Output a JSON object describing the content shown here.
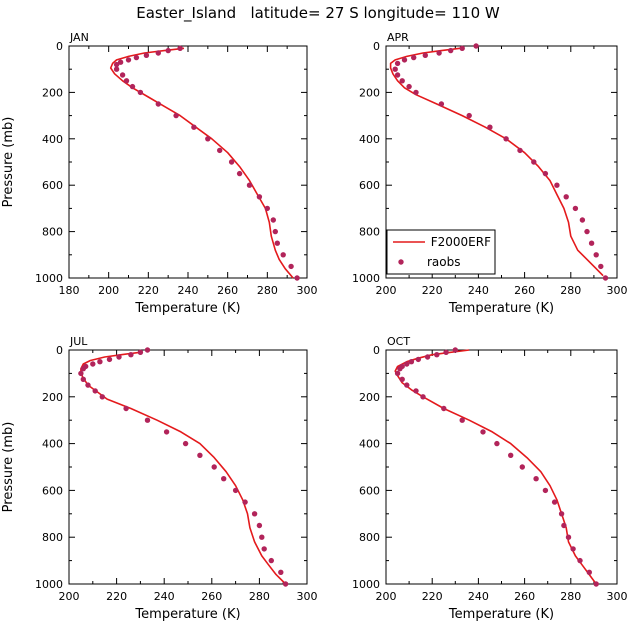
{
  "title": "Easter_Island   latitude= 27 S longitude= 110 W",
  "colors": {
    "model": "#e41a1c",
    "obs": "#b2245a",
    "axis": "#000000"
  },
  "chart_data": [
    {
      "type": "line",
      "panel": "JAN",
      "xlabel": "Temperature (K)",
      "ylabel": "Pressure (mb)",
      "xlim": [
        180,
        300
      ],
      "xticks": [
        180,
        200,
        220,
        240,
        260,
        280,
        300
      ],
      "ylim": [
        0,
        1000
      ],
      "yticks": [
        0,
        200,
        400,
        600,
        800,
        1000
      ],
      "series": [
        {
          "name": "F2000ERF",
          "style": "line",
          "points": [
            [
              238,
              10
            ],
            [
              228,
              20
            ],
            [
              218,
              30
            ],
            [
              210,
              45
            ],
            [
              204,
              60
            ],
            [
              202,
              75
            ],
            [
              201,
              95
            ],
            [
              203,
              120
            ],
            [
              207,
              150
            ],
            [
              212,
              180
            ],
            [
              220,
              220
            ],
            [
              228,
              260
            ],
            [
              236,
              300
            ],
            [
              244,
              350
            ],
            [
              252,
              400
            ],
            [
              260,
              460
            ],
            [
              266,
              520
            ],
            [
              271,
              580
            ],
            [
              275,
              640
            ],
            [
              279,
              700
            ],
            [
              281,
              760
            ],
            [
              282,
              820
            ],
            [
              284,
              880
            ],
            [
              286,
              920
            ],
            [
              289,
              960
            ],
            [
              293,
              1000
            ]
          ]
        },
        {
          "name": "raobs",
          "style": "marker",
          "points": [
            [
              236,
              10
            ],
            [
              230,
              20
            ],
            [
              225,
              30
            ],
            [
              219,
              40
            ],
            [
              214,
              50
            ],
            [
              210,
              60
            ],
            [
              206,
              70
            ],
            [
              204,
              80
            ],
            [
              204,
              100
            ],
            [
              207,
              125
            ],
            [
              209,
              150
            ],
            [
              212,
              175
            ],
            [
              216,
              200
            ],
            [
              225,
              250
            ],
            [
              234,
              300
            ],
            [
              243,
              350
            ],
            [
              250,
              400
            ],
            [
              256,
              450
            ],
            [
              262,
              500
            ],
            [
              266,
              550
            ],
            [
              271,
              600
            ],
            [
              276,
              650
            ],
            [
              280,
              700
            ],
            [
              283,
              750
            ],
            [
              284,
              800
            ],
            [
              285,
              850
            ],
            [
              288,
              900
            ],
            [
              292,
              950
            ],
            [
              295,
              1000
            ]
          ]
        }
      ]
    },
    {
      "type": "line",
      "panel": "APR",
      "xlabel": "Temperature (K)",
      "ylabel": "",
      "xlim": [
        200,
        300
      ],
      "xticks": [
        200,
        220,
        240,
        260,
        280,
        300
      ],
      "ylim": [
        0,
        1000
      ],
      "yticks": [
        0,
        200,
        400,
        600,
        800,
        1000
      ],
      "legend": {
        "position": "bottom-left",
        "entries": [
          "F2000ERF",
          "raobs"
        ]
      },
      "series": [
        {
          "name": "F2000ERF",
          "style": "line",
          "points": [
            [
              232,
              10
            ],
            [
              224,
              20
            ],
            [
              216,
              30
            ],
            [
              209,
              45
            ],
            [
              204,
              60
            ],
            [
              202,
              75
            ],
            [
              202,
              95
            ],
            [
              203,
              120
            ],
            [
              205,
              150
            ],
            [
              208,
              180
            ],
            [
              213,
              210
            ],
            [
              222,
              250
            ],
            [
              233,
              300
            ],
            [
              243,
              350
            ],
            [
              252,
              400
            ],
            [
              260,
              460
            ],
            [
              266,
              520
            ],
            [
              271,
              580
            ],
            [
              274,
              640
            ],
            [
              277,
              700
            ],
            [
              279,
              760
            ],
            [
              280,
              820
            ],
            [
              283,
              880
            ],
            [
              287,
              920
            ],
            [
              291,
              960
            ],
            [
              294,
              990
            ]
          ]
        },
        {
          "name": "raobs",
          "style": "marker",
          "points": [
            [
              239,
              0
            ],
            [
              233,
              10
            ],
            [
              228,
              20
            ],
            [
              223,
              30
            ],
            [
              217,
              40
            ],
            [
              212,
              50
            ],
            [
              208,
              60
            ],
            [
              205,
              75
            ],
            [
              204,
              100
            ],
            [
              205,
              125
            ],
            [
              207,
              150
            ],
            [
              210,
              175
            ],
            [
              213,
              200
            ],
            [
              224,
              250
            ],
            [
              236,
              300
            ],
            [
              245,
              350
            ],
            [
              252,
              400
            ],
            [
              258,
              450
            ],
            [
              264,
              500
            ],
            [
              269,
              550
            ],
            [
              274,
              600
            ],
            [
              278,
              650
            ],
            [
              282,
              700
            ],
            [
              285,
              750
            ],
            [
              287,
              800
            ],
            [
              289,
              850
            ],
            [
              291,
              900
            ],
            [
              293,
              950
            ],
            [
              295,
              1000
            ]
          ]
        }
      ]
    },
    {
      "type": "line",
      "panel": "JUL",
      "xlabel": "Temperature (K)",
      "ylabel": "Pressure (mb)",
      "xlim": [
        200,
        300
      ],
      "xticks": [
        200,
        220,
        240,
        260,
        280,
        300
      ],
      "ylim": [
        0,
        1000
      ],
      "yticks": [
        0,
        200,
        400,
        600,
        800,
        1000
      ],
      "series": [
        {
          "name": "F2000ERF",
          "style": "line",
          "points": [
            [
              230,
              10
            ],
            [
              222,
              20
            ],
            [
              215,
              30
            ],
            [
              209,
              45
            ],
            [
              206,
              60
            ],
            [
              205,
              80
            ],
            [
              205,
              100
            ],
            [
              206,
              120
            ],
            [
              208,
              150
            ],
            [
              212,
              180
            ],
            [
              216,
              210
            ],
            [
              226,
              250
            ],
            [
              237,
              300
            ],
            [
              247,
              350
            ],
            [
              255,
              400
            ],
            [
              261,
              460
            ],
            [
              266,
              520
            ],
            [
              270,
              580
            ],
            [
              273,
              640
            ],
            [
              275,
              700
            ],
            [
              276,
              760
            ],
            [
              278,
              820
            ],
            [
              281,
              880
            ],
            [
              284,
              920
            ],
            [
              287,
              960
            ],
            [
              291,
              1000
            ]
          ]
        },
        {
          "name": "raobs",
          "style": "marker",
          "points": [
            [
              233,
              0
            ],
            [
              230,
              10
            ],
            [
              226,
              20
            ],
            [
              221,
              30
            ],
            [
              217,
              40
            ],
            [
              213,
              50
            ],
            [
              210,
              60
            ],
            [
              207,
              70
            ],
            [
              206,
              80
            ],
            [
              205,
              100
            ],
            [
              206,
              125
            ],
            [
              208,
              150
            ],
            [
              211,
              175
            ],
            [
              214,
              200
            ],
            [
              224,
              250
            ],
            [
              233,
              300
            ],
            [
              241,
              350
            ],
            [
              249,
              400
            ],
            [
              255,
              450
            ],
            [
              261,
              500
            ],
            [
              265,
              550
            ],
            [
              270,
              600
            ],
            [
              274,
              650
            ],
            [
              278,
              700
            ],
            [
              280,
              750
            ],
            [
              281,
              800
            ],
            [
              282,
              850
            ],
            [
              285,
              900
            ],
            [
              289,
              950
            ],
            [
              291,
              1000
            ]
          ]
        }
      ]
    },
    {
      "type": "line",
      "panel": "OCT",
      "xlabel": "Temperature (K)",
      "ylabel": "",
      "xlim": [
        200,
        300
      ],
      "xticks": [
        200,
        220,
        240,
        260,
        280,
        300
      ],
      "ylim": [
        0,
        1000
      ],
      "yticks": [
        0,
        200,
        400,
        600,
        800,
        1000
      ],
      "series": [
        {
          "name": "F2000ERF",
          "style": "line",
          "points": [
            [
              236,
              0
            ],
            [
              228,
              10
            ],
            [
              220,
              20
            ],
            [
              214,
              35
            ],
            [
              209,
              50
            ],
            [
              205,
              70
            ],
            [
              204,
              90
            ],
            [
              205,
              110
            ],
            [
              207,
              140
            ],
            [
              211,
              170
            ],
            [
              216,
              200
            ],
            [
              225,
              250
            ],
            [
              236,
              300
            ],
            [
              246,
              350
            ],
            [
              254,
              400
            ],
            [
              261,
              460
            ],
            [
              267,
              520
            ],
            [
              271,
              580
            ],
            [
              274,
              640
            ],
            [
              276,
              700
            ],
            [
              278,
              760
            ],
            [
              279,
              820
            ],
            [
              282,
              880
            ],
            [
              285,
              920
            ],
            [
              288,
              960
            ],
            [
              291,
              1000
            ]
          ]
        },
        {
          "name": "raobs",
          "style": "marker",
          "points": [
            [
              230,
              0
            ],
            [
              226,
              10
            ],
            [
              222,
              20
            ],
            [
              218,
              30
            ],
            [
              214,
              40
            ],
            [
              211,
              50
            ],
            [
              209,
              60
            ],
            [
              207,
              70
            ],
            [
              206,
              80
            ],
            [
              205,
              100
            ],
            [
              207,
              125
            ],
            [
              209,
              150
            ],
            [
              213,
              175
            ],
            [
              216,
              200
            ],
            [
              225,
              250
            ],
            [
              233,
              300
            ],
            [
              242,
              350
            ],
            [
              248,
              400
            ],
            [
              254,
              450
            ],
            [
              259,
              500
            ],
            [
              265,
              550
            ],
            [
              269,
              600
            ],
            [
              273,
              650
            ],
            [
              276,
              700
            ],
            [
              277,
              750
            ],
            [
              279,
              800
            ],
            [
              281,
              850
            ],
            [
              284,
              900
            ],
            [
              288,
              950
            ],
            [
              291,
              1000
            ]
          ]
        }
      ]
    }
  ]
}
